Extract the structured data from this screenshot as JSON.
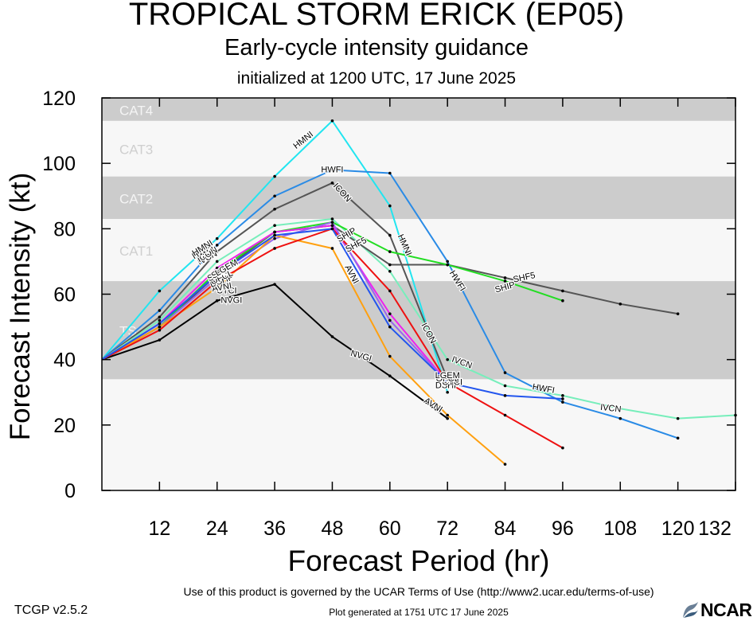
{
  "header": {
    "title": "TROPICAL STORM ERICK (EP05)",
    "subtitle": "Early-cycle intensity guidance",
    "init": "initialized at 1200 UTC, 17 June 2025"
  },
  "footer": {
    "terms": "Use of this product is governed by the UCAR Terms of Use (http://www2.ucar.edu/terms-of-use)",
    "version": "TCGP v2.5.2",
    "generated": "Plot generated at 1751 UTC   17 June 2025",
    "logo": "NCAR"
  },
  "chart_data": {
    "type": "line",
    "xlabel": "Forecast Period (hr)",
    "ylabel": "Forecast Intensity (kt)",
    "xlim": [
      0,
      132
    ],
    "ylim": [
      0,
      120
    ],
    "xticks": [
      12,
      24,
      36,
      48,
      60,
      72,
      84,
      96,
      108,
      120,
      132
    ],
    "yticks": [
      0,
      20,
      40,
      60,
      80,
      100,
      120
    ],
    "grid": false,
    "categories_bands": [
      {
        "label": "TS",
        "from": 34,
        "to": 64
      },
      {
        "label": "CAT1",
        "from": 64,
        "to": 83
      },
      {
        "label": "CAT2",
        "from": 83,
        "to": 96
      },
      {
        "label": "CAT3",
        "from": 96,
        "to": 113
      },
      {
        "label": "CAT4",
        "from": 113,
        "to": 137
      }
    ],
    "colors": {
      "band_dark": "#cccccc",
      "band_light": "#f7f7f7"
    },
    "series": [
      {
        "name": "NVGI",
        "color": "#000000",
        "points": [
          [
            0,
            40
          ],
          [
            12,
            46
          ],
          [
            24,
            58
          ],
          [
            36,
            63
          ],
          [
            48,
            47
          ],
          [
            60,
            35
          ],
          [
            72,
            22
          ]
        ]
      },
      {
        "name": "HMNI",
        "color": "#22e5f0",
        "points": [
          [
            0,
            40
          ],
          [
            12,
            61
          ],
          [
            24,
            77
          ],
          [
            36,
            96
          ],
          [
            48,
            113
          ],
          [
            60,
            87
          ],
          [
            72,
            30
          ]
        ]
      },
      {
        "name": "HWFI",
        "color": "#2a8be6",
        "points": [
          [
            0,
            40
          ],
          [
            12,
            55
          ],
          [
            24,
            75
          ],
          [
            36,
            90
          ],
          [
            48,
            98
          ],
          [
            60,
            97
          ],
          [
            72,
            70
          ],
          [
            84,
            36
          ],
          [
            96,
            27
          ],
          [
            108,
            22
          ],
          [
            120,
            16
          ]
        ]
      },
      {
        "name": "ICON",
        "color": "#555555",
        "points": [
          [
            0,
            40
          ],
          [
            12,
            53
          ],
          [
            24,
            73
          ],
          [
            36,
            86
          ],
          [
            48,
            94
          ],
          [
            60,
            78
          ],
          [
            72,
            34
          ]
        ]
      },
      {
        "name": "IVCN",
        "color": "#77eebb",
        "points": [
          [
            0,
            40
          ],
          [
            12,
            52
          ],
          [
            24,
            70
          ],
          [
            36,
            81
          ],
          [
            48,
            83
          ],
          [
            60,
            67
          ],
          [
            72,
            40
          ],
          [
            84,
            32
          ],
          [
            96,
            29
          ],
          [
            108,
            25
          ],
          [
            120,
            22
          ],
          [
            132,
            23
          ]
        ]
      },
      {
        "name": "SHF5",
        "color": "#555555",
        "points": [
          [
            0,
            40
          ],
          [
            12,
            50
          ],
          [
            24,
            66
          ],
          [
            36,
            79
          ],
          [
            48,
            81
          ],
          [
            60,
            69
          ],
          [
            72,
            69
          ],
          [
            84,
            65
          ],
          [
            96,
            61
          ],
          [
            108,
            57
          ],
          [
            120,
            54
          ]
        ]
      },
      {
        "name": "SHIP",
        "color": "#22dd22",
        "points": [
          [
            0,
            40
          ],
          [
            12,
            50
          ],
          [
            24,
            67
          ],
          [
            36,
            79
          ],
          [
            48,
            82
          ],
          [
            60,
            73
          ],
          [
            72,
            69
          ],
          [
            84,
            64
          ],
          [
            96,
            58
          ]
        ]
      },
      {
        "name": "LGEM",
        "color": "#ee22ee",
        "points": [
          [
            0,
            40
          ],
          [
            12,
            51
          ],
          [
            24,
            68
          ],
          [
            36,
            79
          ],
          [
            48,
            81
          ],
          [
            60,
            54
          ],
          [
            72,
            33
          ]
        ]
      },
      {
        "name": "DSHP",
        "color": "#9966ee",
        "points": [
          [
            0,
            40
          ],
          [
            12,
            50
          ],
          [
            24,
            65
          ],
          [
            36,
            77
          ],
          [
            48,
            82
          ],
          [
            60,
            52
          ],
          [
            72,
            33
          ]
        ]
      },
      {
        "name": "AVNI",
        "color": "#ffa010",
        "points": [
          [
            0,
            40
          ],
          [
            12,
            50
          ],
          [
            24,
            62
          ],
          [
            36,
            78
          ],
          [
            48,
            74
          ],
          [
            60,
            41
          ],
          [
            72,
            23
          ],
          [
            84,
            8
          ]
        ]
      },
      {
        "name": "CTCI",
        "color": "#ee1111",
        "points": [
          [
            0,
            40
          ],
          [
            12,
            49
          ],
          [
            24,
            64
          ],
          [
            36,
            74
          ],
          [
            48,
            80
          ],
          [
            60,
            61
          ],
          [
            72,
            33
          ],
          [
            84,
            23
          ],
          [
            96,
            13
          ]
        ]
      },
      {
        "name": "OFCL",
        "color": "#2255ee",
        "points": [
          [
            0,
            40
          ],
          [
            12,
            51
          ],
          [
            24,
            66
          ],
          [
            36,
            78
          ],
          [
            48,
            80
          ],
          [
            60,
            50
          ],
          [
            72,
            33
          ],
          [
            84,
            29
          ],
          [
            96,
            28
          ]
        ]
      }
    ],
    "labels": [
      {
        "text": "HMNI",
        "x": 42,
        "y": 107,
        "angle": -38
      },
      {
        "text": "HWFI",
        "x": 48,
        "y": 98,
        "angle": 0
      },
      {
        "text": "ICON",
        "x": 50,
        "y": 91,
        "angle": 48
      },
      {
        "text": "HMNI",
        "x": 63,
        "y": 75,
        "angle": 66
      },
      {
        "text": "HWFI",
        "x": 74,
        "y": 64,
        "angle": 58
      },
      {
        "text": "ICON",
        "x": 68,
        "y": 48,
        "angle": 62
      },
      {
        "text": "IVCN",
        "x": 75,
        "y": 39,
        "angle": 20
      },
      {
        "text": "NVGI",
        "x": 54,
        "y": 41,
        "angle": 16
      },
      {
        "text": "AVNI",
        "x": 69,
        "y": 26,
        "angle": 32
      },
      {
        "text": "HWFI",
        "x": 92,
        "y": 31,
        "angle": 10
      },
      {
        "text": "IVCN",
        "x": 106,
        "y": 25,
        "angle": 6
      },
      {
        "text": "SHF5",
        "x": 88,
        "y": 65,
        "angle": -12
      },
      {
        "text": "SHIP",
        "x": 84,
        "y": 62,
        "angle": -16
      },
      {
        "text": "SHF5",
        "x": 53,
        "y": 75,
        "angle": -28
      },
      {
        "text": "SHIP",
        "x": 51,
        "y": 78,
        "angle": -30
      },
      {
        "text": "AVNI",
        "x": 52,
        "y": 66,
        "angle": 62
      },
      {
        "text": "DSHP",
        "x": 72,
        "y": 32,
        "angle": 0
      },
      {
        "text": "CTCI",
        "x": 73,
        "y": 33,
        "angle": 0
      },
      {
        "text": "OFCL",
        "x": 72,
        "y": 34,
        "angle": 0
      },
      {
        "text": "LGEM",
        "x": 72,
        "y": 35,
        "angle": 0
      },
      {
        "text": "NVGI",
        "x": 27,
        "y": 58,
        "angle": 0
      },
      {
        "text": "CTCI",
        "x": 26,
        "y": 61,
        "angle": 0
      },
      {
        "text": "AVNI",
        "x": 25,
        "y": 62,
        "angle": -10
      },
      {
        "text": "DSHP",
        "x": 25,
        "y": 64,
        "angle": -20
      },
      {
        "text": "OFCL",
        "x": 25,
        "y": 65,
        "angle": -25
      },
      {
        "text": "SHIP",
        "x": 24,
        "y": 66,
        "angle": -30
      },
      {
        "text": "SHF5",
        "x": 25,
        "y": 67,
        "angle": -30
      },
      {
        "text": "LGEM",
        "x": 26,
        "y": 68,
        "angle": -30
      },
      {
        "text": "IVCN",
        "x": 22,
        "y": 71,
        "angle": -28
      },
      {
        "text": "ICON",
        "x": 22,
        "y": 72,
        "angle": -30
      },
      {
        "text": "HWFI",
        "x": 21,
        "y": 73,
        "angle": -30
      },
      {
        "text": "HMNI",
        "x": 21,
        "y": 74,
        "angle": -32
      }
    ]
  }
}
